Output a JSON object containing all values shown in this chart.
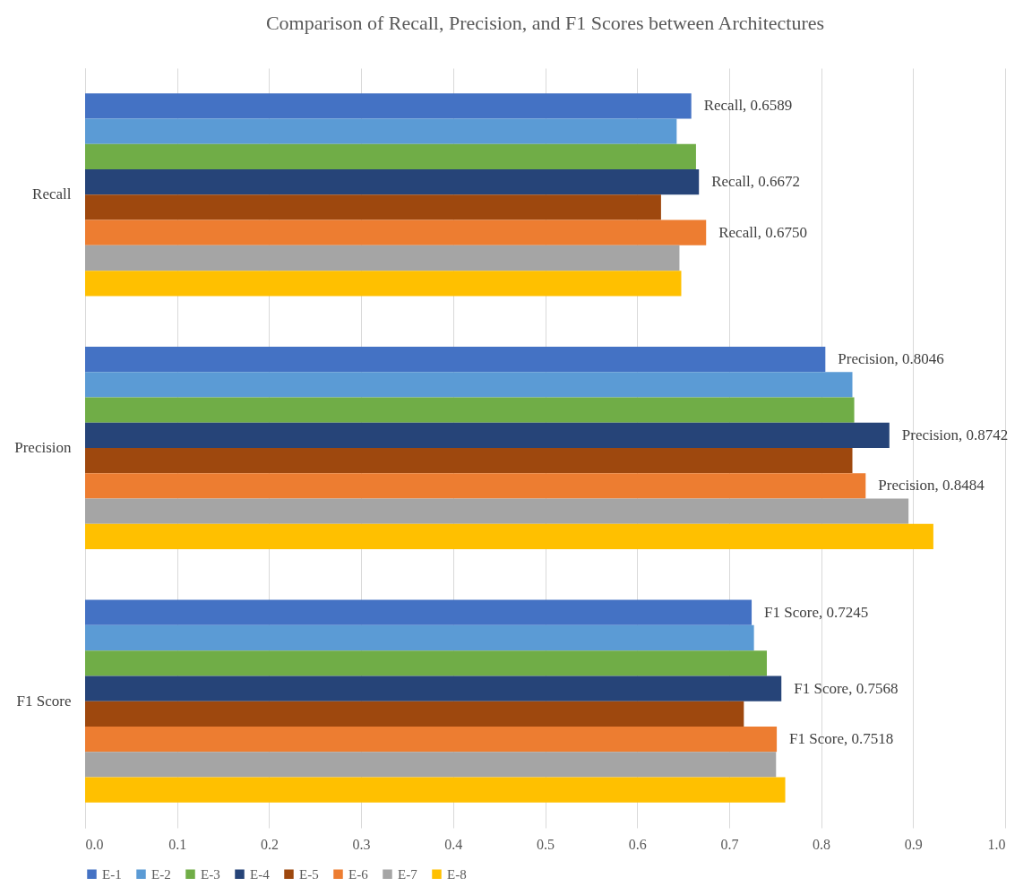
{
  "chart_data": {
    "type": "bar",
    "orientation": "horizontal",
    "title": "Comparison of Recall, Precision, and F1 Scores between Architectures",
    "categories": [
      "Recall",
      "Precision",
      "F1 Score"
    ],
    "series": [
      {
        "name": "E-1",
        "color": "#4472c4",
        "values": [
          0.6589,
          0.8046,
          0.7245
        ],
        "value_labels": [
          "Recall, 0.6589",
          "Precision, 0.8046",
          "F1 Score, 0.7245"
        ]
      },
      {
        "name": "E-2",
        "color": "#5b9bd5",
        "values": [
          0.643,
          0.834,
          0.727
        ]
      },
      {
        "name": "E-3",
        "color": "#70ad47",
        "values": [
          0.664,
          0.836,
          0.741
        ]
      },
      {
        "name": "E-4",
        "color": "#264478",
        "values": [
          0.6672,
          0.8742,
          0.7568
        ],
        "value_labels": [
          "Recall, 0.6672",
          "Precision, 0.8742",
          "F1 Score, 0.7568"
        ]
      },
      {
        "name": "E-5",
        "color": "#9e480e",
        "values": [
          0.626,
          0.834,
          0.716
        ]
      },
      {
        "name": "E-6",
        "color": "#ed7d31",
        "values": [
          0.675,
          0.8484,
          0.7518
        ],
        "value_labels": [
          "Recall, 0.6750",
          "Precision, 0.8484",
          "F1 Score, 0.7518"
        ]
      },
      {
        "name": "E-7",
        "color": "#a5a5a5",
        "values": [
          0.646,
          0.895,
          0.751
        ]
      },
      {
        "name": "E-8",
        "color": "#ffc000",
        "values": [
          0.648,
          0.922,
          0.761
        ]
      }
    ],
    "xlim": [
      0,
      1
    ],
    "xticks": [
      {
        "value": 0,
        "label": "0.0"
      },
      {
        "value": 0.1,
        "label": "0.1"
      },
      {
        "value": 0.2,
        "label": "0.2"
      },
      {
        "value": 0.3,
        "label": "0.3"
      },
      {
        "value": 0.4,
        "label": "0.4"
      },
      {
        "value": 0.5,
        "label": "0.5"
      },
      {
        "value": 0.6,
        "label": "0.6"
      },
      {
        "value": 0.7,
        "label": "0.7"
      },
      {
        "value": 0.8,
        "label": "0.8"
      },
      {
        "value": 0.9,
        "label": "0.9"
      },
      {
        "value": 1,
        "label": "1.0"
      }
    ],
    "grid": "x",
    "legend": "bottom"
  }
}
